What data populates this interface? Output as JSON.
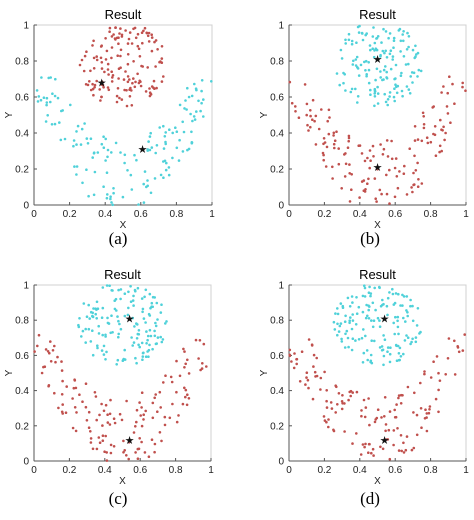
{
  "chart_data": [
    {
      "panel_label": "(a)",
      "type": "scatter",
      "title": "Result",
      "xlabel": "X",
      "ylabel": "Y",
      "xlim": [
        0,
        1
      ],
      "ylim": [
        0,
        1
      ],
      "xticks": [
        "0",
        "0.2",
        "0.4",
        "0.6",
        "0.8",
        "1"
      ],
      "yticks": [
        "0",
        "0.2",
        "0.4",
        "0.6",
        "0.8",
        "1"
      ],
      "grid": false,
      "series": [
        {
          "color": "#c0504d",
          "shape": "cap_top",
          "count": 150
        },
        {
          "color": "#4fd1d9",
          "shape": "bowl_bottom",
          "count": 150
        }
      ],
      "centroids": [
        {
          "x": 0.38,
          "y": 0.68
        },
        {
          "x": 0.61,
          "y": 0.31
        }
      ]
    },
    {
      "panel_label": "(b)",
      "type": "scatter",
      "title": "Result",
      "xlabel": "X",
      "ylabel": "Y",
      "xlim": [
        0,
        1
      ],
      "ylim": [
        0,
        1
      ],
      "xticks": [
        "0",
        "0.2",
        "0.4",
        "0.6",
        "0.8",
        "1"
      ],
      "yticks": [
        "0",
        "0.2",
        "0.4",
        "0.6",
        "0.8",
        "1"
      ],
      "grid": false,
      "series": [
        {
          "color": "#4fd1d9",
          "shape": "cap_top",
          "count": 150
        },
        {
          "color": "#c0504d",
          "shape": "bowl_bottom",
          "count": 150
        }
      ],
      "centroids": [
        {
          "x": 0.5,
          "y": 0.81
        },
        {
          "x": 0.5,
          "y": 0.21
        }
      ]
    },
    {
      "panel_label": "(c)",
      "type": "scatter",
      "title": "Result",
      "xlabel": "X",
      "ylabel": "Y",
      "xlim": [
        0,
        1
      ],
      "ylim": [
        0,
        1
      ],
      "xticks": [
        "0",
        "0.2",
        "0.4",
        "0.6",
        "0.8",
        "1"
      ],
      "yticks": [
        "0",
        "0.2",
        "0.4",
        "0.6",
        "0.8",
        "1"
      ],
      "grid": false,
      "series": [
        {
          "color": "#4fd1d9",
          "shape": "cap_top",
          "count": 150
        },
        {
          "color": "#c0504d",
          "shape": "bowl_bottom",
          "count": 150
        }
      ],
      "centroids": [
        {
          "x": 0.54,
          "y": 0.81
        },
        {
          "x": 0.54,
          "y": 0.12
        }
      ]
    },
    {
      "panel_label": "(d)",
      "type": "scatter",
      "title": "Result",
      "xlabel": "X",
      "ylabel": "Y",
      "xlim": [
        0,
        1
      ],
      "ylim": [
        0,
        1
      ],
      "xticks": [
        "0",
        "0.2",
        "0.4",
        "0.6",
        "0.8",
        "1"
      ],
      "yticks": [
        "0",
        "0.2",
        "0.4",
        "0.6",
        "0.8",
        "1"
      ],
      "grid": false,
      "series": [
        {
          "color": "#4fd1d9",
          "shape": "cap_top",
          "count": 150
        },
        {
          "color": "#c0504d",
          "shape": "bowl_bottom",
          "count": 150
        }
      ],
      "centroids": [
        {
          "x": 0.54,
          "y": 0.81
        },
        {
          "x": 0.54,
          "y": 0.12
        }
      ]
    }
  ]
}
